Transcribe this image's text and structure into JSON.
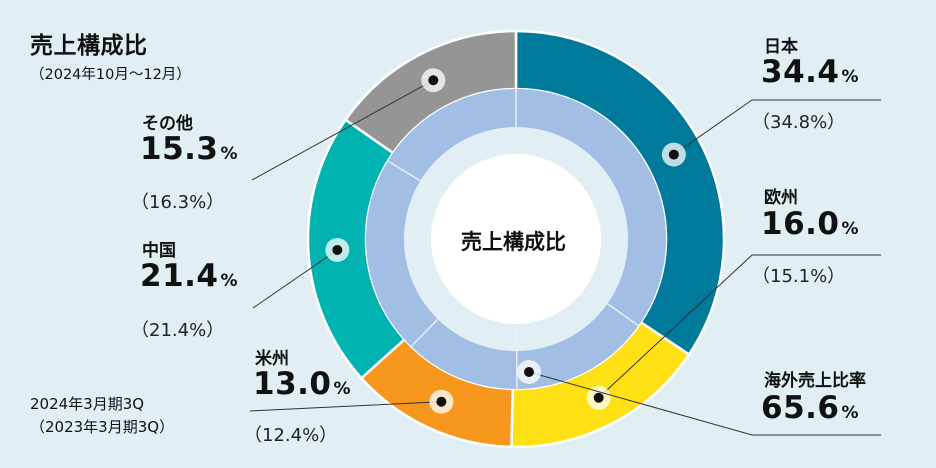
{
  "title": "売上構成比",
  "period": "（2024年10月〜12月）",
  "center_label": "売上構成比",
  "ring_legend": {
    "outer": "2024年3月期3Q",
    "inner": "（2023年3月期3Q）"
  },
  "colors": {
    "日本": "#007a9a",
    "欧州": "#ffe014",
    "米州": "#f7971d",
    "中国": "#00b3b0",
    "その他": "#959595",
    "inner_ring": "#a2bee4",
    "center": "#ffffff"
  },
  "chart_data": {
    "type": "donut",
    "title": "売上構成比",
    "unit": "%",
    "series": [
      {
        "name": "2024年3月期3Q",
        "ring": "outer",
        "categories": [
          "日本",
          "欧州",
          "米州",
          "中国",
          "その他"
        ],
        "values": [
          34.4,
          16.0,
          13.0,
          21.4,
          15.3
        ]
      },
      {
        "name": "2023年3月期3Q",
        "ring": "inner",
        "categories": [
          "日本",
          "欧州",
          "米州",
          "中国",
          "その他"
        ],
        "values": [
          34.8,
          15.1,
          12.4,
          21.4,
          16.3
        ]
      }
    ],
    "overseas_ratio": {
      "label": "海外売上比率",
      "value": 65.6
    }
  },
  "labels": {
    "japan": {
      "name": "日本",
      "pct": "34.4",
      "unit": "%",
      "prev": "（34.8%）"
    },
    "europe": {
      "name": "欧州",
      "pct": "16.0",
      "unit": "%",
      "prev": "（15.1%）"
    },
    "americas": {
      "name": "米州",
      "pct": "13.0",
      "unit": "%",
      "prev": "（12.4%）"
    },
    "china": {
      "name": "中国",
      "pct": "21.4",
      "unit": "%",
      "prev": "（21.4%）"
    },
    "other": {
      "name": "その他",
      "pct": "15.3",
      "unit": "%",
      "prev": "（16.3%）"
    },
    "overseas": {
      "name": "海外売上比率",
      "pct": "65.6",
      "unit": "%"
    }
  }
}
